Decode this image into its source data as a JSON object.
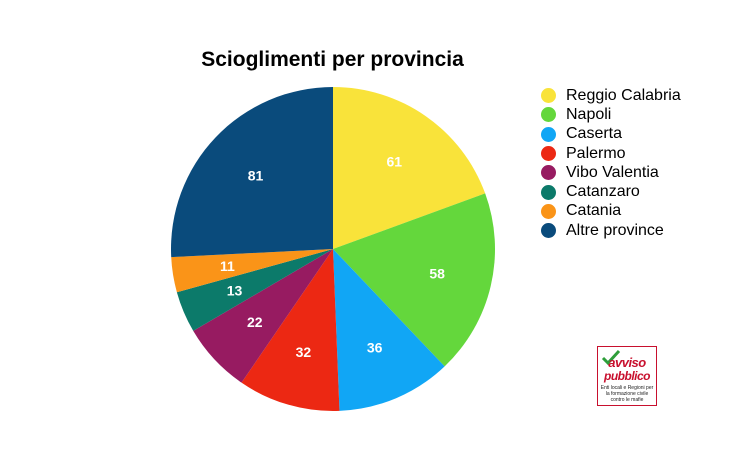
{
  "chart_data": {
    "type": "pie",
    "title": "Scioglimenti per provincia",
    "legend_position": "right",
    "slices": [
      {
        "label": "Reggio Calabria",
        "value": 61,
        "color": "#f9e33a"
      },
      {
        "label": "Napoli",
        "value": 58,
        "color": "#64d73c"
      },
      {
        "label": "Caserta",
        "value": 36,
        "color": "#11a6f5"
      },
      {
        "label": "Palermo",
        "value": 32,
        "color": "#ec2813"
      },
      {
        "label": "Vibo Valentia",
        "value": 22,
        "color": "#971b61"
      },
      {
        "label": "Catanzaro",
        "value": 13,
        "color": "#0c7a6a"
      },
      {
        "label": "Catania",
        "value": 11,
        "color": "#fa9418"
      },
      {
        "label": "Altre province",
        "value": 81,
        "color": "#0a4b7c"
      }
    ]
  },
  "logo": {
    "line1": "avviso",
    "line2": "pubblico",
    "tagline": "Enti locali e Regioni per la formazione civile contro le mafie"
  }
}
